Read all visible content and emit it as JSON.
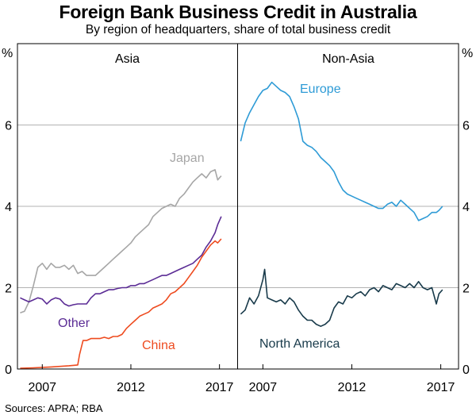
{
  "title": "Foreign Bank Business Credit in Australia",
  "subtitle": "By region of headquarters, share of total business credit",
  "source": "Sources: APRA; RBA",
  "colors": {
    "japan": "#a6a6a6",
    "other": "#5b2c95",
    "china": "#ee4b1f",
    "europe": "#2e9bd6",
    "north_america": "#183a4a",
    "gridline": "#b3b3b3",
    "frame": "#000000"
  },
  "chart_data": {
    "type": "line",
    "yunit_left": "%",
    "yunit_right": "%",
    "ylim": [
      0,
      8
    ],
    "yticks": [
      0,
      2,
      4,
      6
    ],
    "xlim": [
      2005.6,
      2018.0
    ],
    "xticks": [
      2007,
      2012,
      2017
    ],
    "grid": true,
    "panels": [
      {
        "label": "Asia",
        "series": [
          {
            "name": "Japan",
            "color": "#a6a6a6",
            "points": [
              [
                2005.75,
                1.38
              ],
              [
                2006.0,
                1.42
              ],
              [
                2006.25,
                1.65
              ],
              [
                2006.5,
                2.05
              ],
              [
                2006.75,
                2.5
              ],
              [
                2007.0,
                2.6
              ],
              [
                2007.25,
                2.45
              ],
              [
                2007.5,
                2.6
              ],
              [
                2007.75,
                2.5
              ],
              [
                2008.0,
                2.5
              ],
              [
                2008.25,
                2.55
              ],
              [
                2008.5,
                2.45
              ],
              [
                2008.75,
                2.55
              ],
              [
                2009.0,
                2.35
              ],
              [
                2009.25,
                2.4
              ],
              [
                2009.5,
                2.3
              ],
              [
                2009.75,
                2.3
              ],
              [
                2010.0,
                2.3
              ],
              [
                2010.25,
                2.4
              ],
              [
                2010.5,
                2.5
              ],
              [
                2010.75,
                2.6
              ],
              [
                2011.0,
                2.7
              ],
              [
                2011.25,
                2.8
              ],
              [
                2011.5,
                2.9
              ],
              [
                2011.75,
                3.0
              ],
              [
                2012.0,
                3.1
              ],
              [
                2012.25,
                3.25
              ],
              [
                2012.5,
                3.35
              ],
              [
                2012.75,
                3.45
              ],
              [
                2013.0,
                3.55
              ],
              [
                2013.25,
                3.75
              ],
              [
                2013.5,
                3.85
              ],
              [
                2013.75,
                3.95
              ],
              [
                2014.0,
                4.0
              ],
              [
                2014.25,
                4.05
              ],
              [
                2014.5,
                4.0
              ],
              [
                2014.75,
                4.2
              ],
              [
                2015.0,
                4.3
              ],
              [
                2015.25,
                4.45
              ],
              [
                2015.5,
                4.6
              ],
              [
                2015.75,
                4.7
              ],
              [
                2016.0,
                4.8
              ],
              [
                2016.25,
                4.7
              ],
              [
                2016.5,
                4.85
              ],
              [
                2016.75,
                4.9
              ],
              [
                2016.9,
                4.65
              ],
              [
                2017.1,
                4.75
              ]
            ]
          },
          {
            "name": "Other",
            "color": "#5b2c95",
            "points": [
              [
                2005.75,
                1.75
              ],
              [
                2006.0,
                1.7
              ],
              [
                2006.25,
                1.65
              ],
              [
                2006.5,
                1.7
              ],
              [
                2006.75,
                1.75
              ],
              [
                2007.0,
                1.72
              ],
              [
                2007.25,
                1.6
              ],
              [
                2007.5,
                1.7
              ],
              [
                2007.75,
                1.75
              ],
              [
                2008.0,
                1.72
              ],
              [
                2008.25,
                1.6
              ],
              [
                2008.5,
                1.55
              ],
              [
                2008.75,
                1.58
              ],
              [
                2009.0,
                1.6
              ],
              [
                2009.25,
                1.6
              ],
              [
                2009.5,
                1.6
              ],
              [
                2009.75,
                1.75
              ],
              [
                2010.0,
                1.85
              ],
              [
                2010.25,
                1.85
              ],
              [
                2010.5,
                1.9
              ],
              [
                2010.75,
                1.95
              ],
              [
                2011.0,
                1.95
              ],
              [
                2011.25,
                1.98
              ],
              [
                2011.5,
                2.0
              ],
              [
                2011.75,
                2.0
              ],
              [
                2012.0,
                2.05
              ],
              [
                2012.25,
                2.05
              ],
              [
                2012.5,
                2.1
              ],
              [
                2012.75,
                2.1
              ],
              [
                2013.0,
                2.15
              ],
              [
                2013.25,
                2.2
              ],
              [
                2013.5,
                2.25
              ],
              [
                2013.75,
                2.3
              ],
              [
                2014.0,
                2.3
              ],
              [
                2014.25,
                2.35
              ],
              [
                2014.5,
                2.4
              ],
              [
                2014.75,
                2.45
              ],
              [
                2015.0,
                2.5
              ],
              [
                2015.25,
                2.55
              ],
              [
                2015.5,
                2.6
              ],
              [
                2015.75,
                2.7
              ],
              [
                2016.0,
                2.8
              ],
              [
                2016.25,
                3.0
              ],
              [
                2016.5,
                3.15
              ],
              [
                2016.75,
                3.35
              ],
              [
                2016.9,
                3.55
              ],
              [
                2017.1,
                3.75
              ]
            ]
          },
          {
            "name": "China",
            "color": "#ee4b1f",
            "points": [
              [
                2005.75,
                0.02
              ],
              [
                2006.5,
                0.03
              ],
              [
                2007.5,
                0.05
              ],
              [
                2008.5,
                0.08
              ],
              [
                2009.0,
                0.1
              ],
              [
                2009.1,
                0.35
              ],
              [
                2009.3,
                0.7
              ],
              [
                2009.5,
                0.7
              ],
              [
                2009.75,
                0.75
              ],
              [
                2010.0,
                0.75
              ],
              [
                2010.25,
                0.75
              ],
              [
                2010.5,
                0.78
              ],
              [
                2010.75,
                0.75
              ],
              [
                2011.0,
                0.8
              ],
              [
                2011.25,
                0.8
              ],
              [
                2011.5,
                0.85
              ],
              [
                2011.75,
                1.0
              ],
              [
                2012.0,
                1.1
              ],
              [
                2012.25,
                1.2
              ],
              [
                2012.5,
                1.3
              ],
              [
                2012.75,
                1.35
              ],
              [
                2013.0,
                1.4
              ],
              [
                2013.25,
                1.5
              ],
              [
                2013.5,
                1.55
              ],
              [
                2013.75,
                1.6
              ],
              [
                2014.0,
                1.7
              ],
              [
                2014.25,
                1.85
              ],
              [
                2014.5,
                1.9
              ],
              [
                2014.75,
                2.0
              ],
              [
                2015.0,
                2.1
              ],
              [
                2015.25,
                2.25
              ],
              [
                2015.5,
                2.4
              ],
              [
                2015.75,
                2.55
              ],
              [
                2016.0,
                2.75
              ],
              [
                2016.25,
                2.9
              ],
              [
                2016.5,
                3.05
              ],
              [
                2016.75,
                3.15
              ],
              [
                2016.9,
                3.1
              ],
              [
                2017.1,
                3.2
              ]
            ]
          }
        ]
      },
      {
        "label": "Non-Asia",
        "series": [
          {
            "name": "Europe",
            "color": "#2e9bd6",
            "points": [
              [
                2005.75,
                5.6
              ],
              [
                2006.0,
                6.05
              ],
              [
                2006.25,
                6.3
              ],
              [
                2006.5,
                6.5
              ],
              [
                2006.75,
                6.7
              ],
              [
                2007.0,
                6.85
              ],
              [
                2007.25,
                6.9
              ],
              [
                2007.5,
                7.05
              ],
              [
                2007.75,
                6.95
              ],
              [
                2008.0,
                6.85
              ],
              [
                2008.25,
                6.8
              ],
              [
                2008.5,
                6.7
              ],
              [
                2008.75,
                6.45
              ],
              [
                2009.0,
                6.15
              ],
              [
                2009.25,
                5.6
              ],
              [
                2009.5,
                5.5
              ],
              [
                2009.75,
                5.45
              ],
              [
                2010.0,
                5.35
              ],
              [
                2010.25,
                5.2
              ],
              [
                2010.5,
                5.1
              ],
              [
                2010.75,
                5.0
              ],
              [
                2011.0,
                4.85
              ],
              [
                2011.25,
                4.6
              ],
              [
                2011.5,
                4.4
              ],
              [
                2011.75,
                4.3
              ],
              [
                2012.0,
                4.25
              ],
              [
                2012.25,
                4.2
              ],
              [
                2012.5,
                4.15
              ],
              [
                2012.75,
                4.1
              ],
              [
                2013.0,
                4.05
              ],
              [
                2013.25,
                4.0
              ],
              [
                2013.5,
                3.95
              ],
              [
                2013.75,
                3.95
              ],
              [
                2014.0,
                4.05
              ],
              [
                2014.25,
                4.1
              ],
              [
                2014.5,
                4.0
              ],
              [
                2014.75,
                4.15
              ],
              [
                2015.0,
                4.05
              ],
              [
                2015.25,
                3.95
              ],
              [
                2015.5,
                3.85
              ],
              [
                2015.75,
                3.65
              ],
              [
                2016.0,
                3.7
              ],
              [
                2016.25,
                3.75
              ],
              [
                2016.5,
                3.85
              ],
              [
                2016.75,
                3.85
              ],
              [
                2016.9,
                3.9
              ],
              [
                2017.1,
                4.0
              ]
            ]
          },
          {
            "name": "North America",
            "color": "#183a4a",
            "points": [
              [
                2005.75,
                1.35
              ],
              [
                2006.0,
                1.45
              ],
              [
                2006.25,
                1.75
              ],
              [
                2006.5,
                1.6
              ],
              [
                2006.75,
                1.8
              ],
              [
                2007.0,
                2.2
              ],
              [
                2007.1,
                2.45
              ],
              [
                2007.25,
                1.75
              ],
              [
                2007.5,
                1.7
              ],
              [
                2007.75,
                1.65
              ],
              [
                2008.0,
                1.7
              ],
              [
                2008.25,
                1.6
              ],
              [
                2008.5,
                1.75
              ],
              [
                2008.75,
                1.65
              ],
              [
                2009.0,
                1.45
              ],
              [
                2009.25,
                1.3
              ],
              [
                2009.5,
                1.2
              ],
              [
                2009.75,
                1.2
              ],
              [
                2010.0,
                1.1
              ],
              [
                2010.25,
                1.05
              ],
              [
                2010.5,
                1.1
              ],
              [
                2010.75,
                1.2
              ],
              [
                2011.0,
                1.5
              ],
              [
                2011.25,
                1.65
              ],
              [
                2011.5,
                1.6
              ],
              [
                2011.75,
                1.8
              ],
              [
                2012.0,
                1.75
              ],
              [
                2012.25,
                1.85
              ],
              [
                2012.5,
                1.9
              ],
              [
                2012.75,
                1.8
              ],
              [
                2013.0,
                1.95
              ],
              [
                2013.25,
                2.0
              ],
              [
                2013.5,
                1.9
              ],
              [
                2013.75,
                2.05
              ],
              [
                2014.0,
                2.0
              ],
              [
                2014.25,
                1.95
              ],
              [
                2014.5,
                2.1
              ],
              [
                2014.75,
                2.05
              ],
              [
                2015.0,
                2.0
              ],
              [
                2015.25,
                2.1
              ],
              [
                2015.5,
                2.0
              ],
              [
                2015.75,
                2.15
              ],
              [
                2016.0,
                2.0
              ],
              [
                2016.25,
                1.95
              ],
              [
                2016.5,
                2.0
              ],
              [
                2016.75,
                1.6
              ],
              [
                2016.9,
                1.85
              ],
              [
                2017.1,
                1.95
              ]
            ]
          }
        ]
      }
    ]
  }
}
